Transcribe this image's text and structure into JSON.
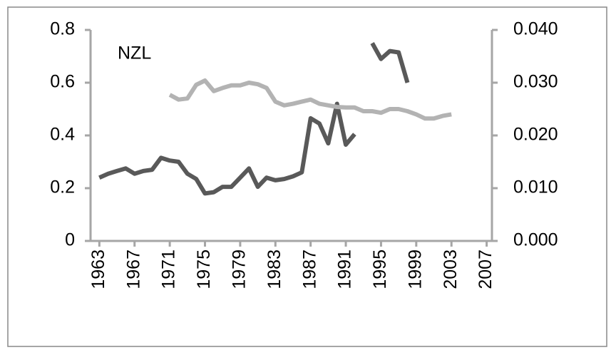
{
  "chart_data": {
    "type": "line",
    "annotation": "NZL",
    "x": [
      1963,
      1964,
      1965,
      1966,
      1967,
      1968,
      1969,
      1970,
      1971,
      1972,
      1973,
      1974,
      1975,
      1976,
      1977,
      1978,
      1979,
      1980,
      1981,
      1982,
      1983,
      1984,
      1985,
      1986,
      1987,
      1988,
      1989,
      1990,
      1991,
      1992,
      1993,
      1994,
      1995,
      1996,
      1997,
      1998,
      1999,
      2000,
      2001,
      2002,
      2003
    ],
    "xlim": [
      1962,
      2007.6
    ],
    "xticks": [
      1963,
      1967,
      1971,
      1975,
      1979,
      1983,
      1987,
      1991,
      1995,
      1999,
      2003,
      2007
    ],
    "ylim": [
      0,
      0.8
    ],
    "yticks": [
      0,
      0.2,
      0.4,
      0.6,
      0.8
    ],
    "y2lim": [
      0,
      0.04
    ],
    "y2ticks": [
      {
        "value": 0,
        "label": "0.000"
      },
      {
        "value": 0.01,
        "label": "0.010"
      },
      {
        "value": 0.02,
        "label": "0.020"
      },
      {
        "value": 0.03,
        "label": "0.030"
      },
      {
        "value": 0.04,
        "label": "0.040"
      }
    ],
    "grid": false,
    "series": [
      {
        "color": "#595959",
        "axis": "y",
        "values": [
          0.24,
          0.255,
          0.265,
          0.275,
          0.255,
          0.265,
          0.27,
          0.315,
          0.305,
          0.3,
          0.255,
          0.235,
          0.18,
          0.185,
          0.205,
          0.205,
          0.24,
          0.275,
          0.205,
          0.24,
          0.23,
          0.235,
          0.245,
          0.26,
          0.465,
          0.445,
          0.37,
          0.52,
          0.365,
          0.405,
          null,
          0.75,
          0.69,
          0.72,
          0.715,
          0.6,
          null,
          null,
          null,
          null,
          null
        ]
      },
      {
        "color": "#b3b3b3",
        "axis": "y2",
        "values": [
          null,
          null,
          null,
          null,
          null,
          null,
          null,
          null,
          0.0277,
          0.0268,
          0.027,
          0.0296,
          0.0304,
          0.0284,
          0.029,
          0.0295,
          0.0295,
          0.03,
          0.0297,
          0.029,
          0.0264,
          0.0257,
          0.026,
          0.0264,
          0.0268,
          0.026,
          0.0257,
          0.0254,
          0.0253,
          0.0253,
          0.0246,
          0.0246,
          0.0243,
          0.025,
          0.025,
          0.0246,
          0.024,
          0.0232,
          0.0232,
          0.0237,
          0.024
        ]
      }
    ]
  }
}
